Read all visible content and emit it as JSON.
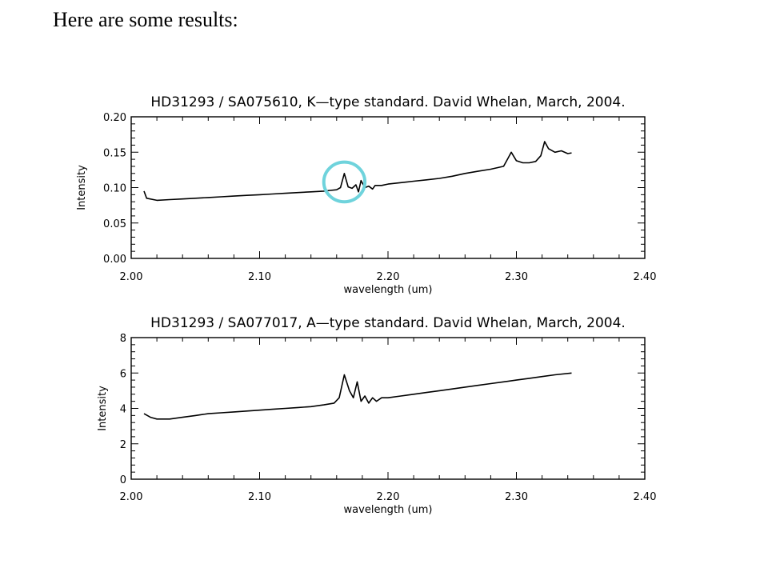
{
  "slide": {
    "heading": "Here are some results:"
  },
  "colors": {
    "trace": "#000000",
    "highlight_circle": "#6fd3dc"
  },
  "chart_data": [
    {
      "type": "line",
      "title": "HD31293 / SA075610, K—type standard.   David Whelan, March, 2004.",
      "xlabel": "wavelength (um)",
      "ylabel": "Intensity",
      "xlim": [
        2.0,
        2.4
      ],
      "ylim": [
        0.0,
        0.2
      ],
      "xticks": [
        "2.00",
        "2.10",
        "2.20",
        "2.30",
        "2.40"
      ],
      "yticks": [
        "0.00",
        "0.05",
        "0.10",
        "0.15",
        "0.20"
      ],
      "grid": false,
      "legend": "none",
      "annotation": "circle highlighting emission feature near 2.166 um",
      "highlight": {
        "x": 2.166,
        "y": 0.108,
        "rx": 0.016,
        "ry": 0.028
      },
      "series": [
        {
          "values": [
            [
              2.01,
              0.095
            ],
            [
              2.012,
              0.085
            ],
            [
              2.02,
              0.082
            ],
            [
              2.03,
              0.083
            ],
            [
              2.04,
              0.084
            ],
            [
              2.05,
              0.085
            ],
            [
              2.06,
              0.086
            ],
            [
              2.07,
              0.087
            ],
            [
              2.08,
              0.088
            ],
            [
              2.09,
              0.089
            ],
            [
              2.1,
              0.09
            ],
            [
              2.11,
              0.091
            ],
            [
              2.12,
              0.092
            ],
            [
              2.13,
              0.093
            ],
            [
              2.14,
              0.094
            ],
            [
              2.15,
              0.095
            ],
            [
              2.155,
              0.096
            ],
            [
              2.16,
              0.097
            ],
            [
              2.163,
              0.1
            ],
            [
              2.166,
              0.12
            ],
            [
              2.169,
              0.101
            ],
            [
              2.172,
              0.099
            ],
            [
              2.175,
              0.104
            ],
            [
              2.177,
              0.094
            ],
            [
              2.179,
              0.11
            ],
            [
              2.182,
              0.1
            ],
            [
              2.185,
              0.102
            ],
            [
              2.188,
              0.098
            ],
            [
              2.19,
              0.103
            ],
            [
              2.195,
              0.103
            ],
            [
              2.2,
              0.105
            ],
            [
              2.21,
              0.107
            ],
            [
              2.22,
              0.109
            ],
            [
              2.23,
              0.111
            ],
            [
              2.24,
              0.113
            ],
            [
              2.25,
              0.116
            ],
            [
              2.26,
              0.12
            ],
            [
              2.27,
              0.123
            ],
            [
              2.28,
              0.126
            ],
            [
              2.29,
              0.13
            ],
            [
              2.293,
              0.14
            ],
            [
              2.296,
              0.15
            ],
            [
              2.3,
              0.138
            ],
            [
              2.305,
              0.135
            ],
            [
              2.31,
              0.135
            ],
            [
              2.315,
              0.137
            ],
            [
              2.319,
              0.145
            ],
            [
              2.322,
              0.165
            ],
            [
              2.325,
              0.155
            ],
            [
              2.33,
              0.15
            ],
            [
              2.335,
              0.152
            ],
            [
              2.34,
              0.148
            ],
            [
              2.343,
              0.149
            ]
          ]
        }
      ]
    },
    {
      "type": "line",
      "title": "HD31293 / SA077017, A—type standard.   David Whelan, March, 2004.",
      "xlabel": "wavelength (um)",
      "ylabel": "Intensity",
      "xlim": [
        2.0,
        2.4
      ],
      "ylim": [
        0,
        8
      ],
      "xticks": [
        "2.00",
        "2.10",
        "2.20",
        "2.30",
        "2.40"
      ],
      "yticks": [
        "0",
        "2",
        "4",
        "6",
        "8"
      ],
      "grid": false,
      "legend": "none",
      "series": [
        {
          "values": [
            [
              2.01,
              3.7
            ],
            [
              2.015,
              3.5
            ],
            [
              2.02,
              3.4
            ],
            [
              2.03,
              3.4
            ],
            [
              2.04,
              3.5
            ],
            [
              2.05,
              3.6
            ],
            [
              2.06,
              3.7
            ],
            [
              2.07,
              3.75
            ],
            [
              2.08,
              3.8
            ],
            [
              2.09,
              3.85
            ],
            [
              2.1,
              3.9
            ],
            [
              2.11,
              3.95
            ],
            [
              2.12,
              4.0
            ],
            [
              2.13,
              4.05
            ],
            [
              2.14,
              4.1
            ],
            [
              2.15,
              4.2
            ],
            [
              2.158,
              4.3
            ],
            [
              2.162,
              4.6
            ],
            [
              2.166,
              5.9
            ],
            [
              2.17,
              5.0
            ],
            [
              2.173,
              4.6
            ],
            [
              2.176,
              5.5
            ],
            [
              2.179,
              4.4
            ],
            [
              2.182,
              4.7
            ],
            [
              2.185,
              4.3
            ],
            [
              2.188,
              4.6
            ],
            [
              2.191,
              4.4
            ],
            [
              2.195,
              4.6
            ],
            [
              2.2,
              4.6
            ],
            [
              2.21,
              4.7
            ],
            [
              2.22,
              4.8
            ],
            [
              2.23,
              4.9
            ],
            [
              2.24,
              5.0
            ],
            [
              2.25,
              5.1
            ],
            [
              2.26,
              5.2
            ],
            [
              2.27,
              5.3
            ],
            [
              2.28,
              5.4
            ],
            [
              2.29,
              5.5
            ],
            [
              2.3,
              5.6
            ],
            [
              2.31,
              5.7
            ],
            [
              2.32,
              5.8
            ],
            [
              2.33,
              5.9
            ],
            [
              2.343,
              6.0
            ]
          ]
        }
      ]
    }
  ]
}
